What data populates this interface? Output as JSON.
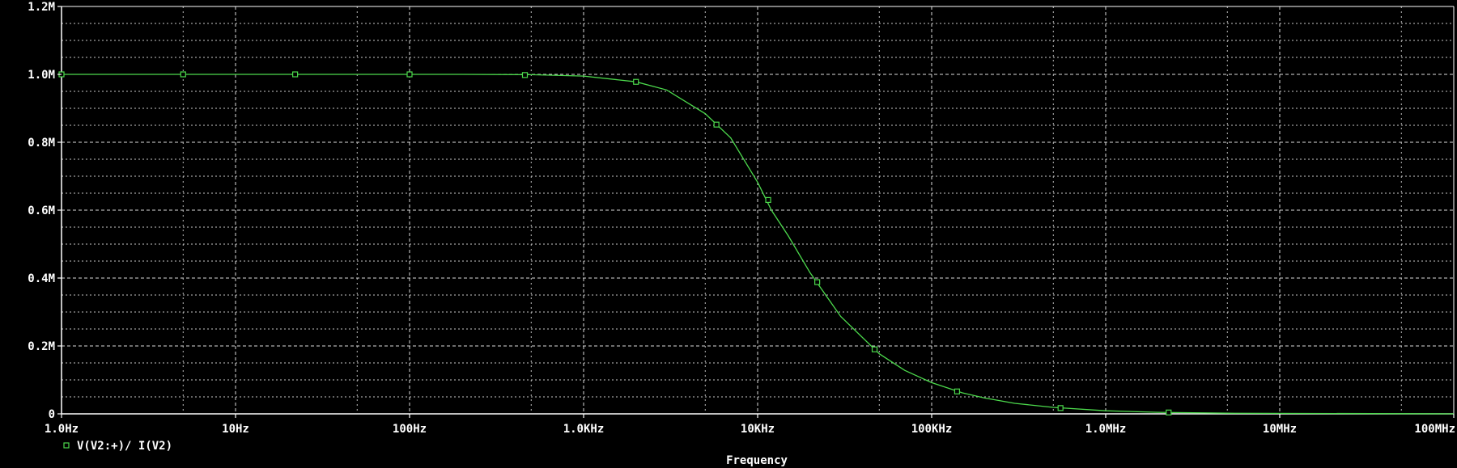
{
  "chart_data": {
    "type": "line",
    "x_scale": "log",
    "xlim": [
      1,
      100000000
    ],
    "ylim": [
      0,
      1200000
    ],
    "x_ticks": [
      1,
      10,
      100,
      1000,
      10000,
      100000,
      1000000,
      10000000,
      100000000
    ],
    "x_tick_labels": [
      "1.0Hz",
      "10Hz",
      "100Hz",
      "1.0KHz",
      "10KHz",
      "100KHz",
      "1.0MHz",
      "10MHz",
      "100MHz"
    ],
    "y_ticks": [
      0,
      200000,
      400000,
      600000,
      800000,
      1000000,
      1200000
    ],
    "y_tick_labels": [
      "0",
      "0.2M",
      "0.4M",
      "0.6M",
      "0.8M",
      "1.0M",
      "1.2M"
    ],
    "xlabel": "Frequency",
    "ylabel": "",
    "grid": true,
    "legend_position": "bottom-left",
    "series": [
      {
        "name": "V(V2:+)/ I(V2)",
        "color": "#4cd94c",
        "curve": {
          "x": [
            1,
            2,
            5,
            10,
            20,
            50,
            100,
            200,
            500,
            1000,
            2000,
            3000,
            5000,
            7000,
            10000,
            12000,
            15000,
            20000,
            30000,
            50000,
            70000,
            100000,
            150000,
            200000,
            300000,
            500000,
            1000000,
            2000000,
            5000000
          ],
          "y": [
            1000000,
            1000000,
            1000000,
            1000000,
            1000000,
            1000000,
            1000000,
            1000000,
            999000,
            995000,
            978000,
            954000,
            884000,
            813000,
            682000,
            600000,
            524000,
            416000,
            287000,
            177000,
            128000,
            92000,
            62000,
            47000,
            31000,
            19000,
            9000,
            4500,
            1800
          ]
        },
        "markers": {
          "x": [
            1,
            5,
            22,
            100,
            460,
            2000,
            5800,
            11500,
            22000,
            47000,
            140000,
            550000,
            2300000
          ],
          "y": [
            1000000,
            1000000,
            1000000,
            1000000,
            998000,
            978000,
            852000,
            630000,
            388000,
            190000,
            66000,
            17000,
            4000
          ]
        }
      }
    ]
  }
}
